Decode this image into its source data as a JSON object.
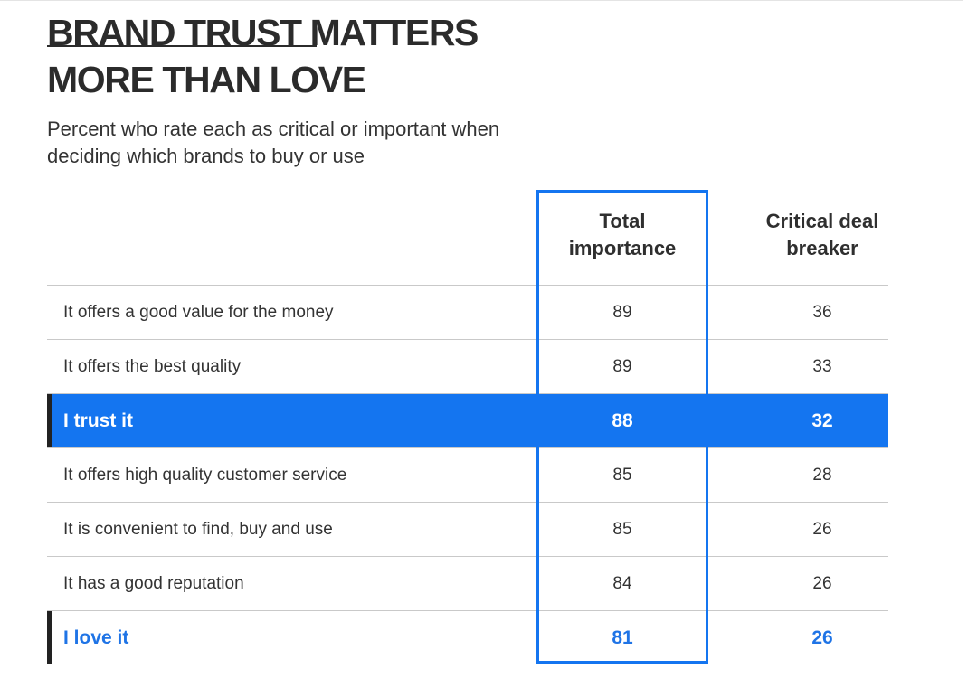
{
  "title_line1": "BRAND TRUST MATTERS",
  "title_line2": "MORE THAN LOVE",
  "subtitle": "Percent who rate each as critical or important when deciding which brands to buy or use",
  "columns": {
    "total_line1": "Total",
    "total_line2": "importance",
    "critical_line1": "Critical deal",
    "critical_line2": "breaker"
  },
  "colors": {
    "accent": "#1475f0",
    "love_text": "#1f74e6",
    "marker": "#222222"
  },
  "chart_data": {
    "type": "table",
    "title": "BRAND TRUST MATTERS MORE THAN LOVE",
    "subtitle": "Percent who rate each as critical or important when deciding which brands to buy or use",
    "columns": [
      "Total importance",
      "Critical deal breaker"
    ],
    "rows": [
      {
        "label": "It offers a good value for the money",
        "total": "89",
        "critical": "36",
        "style": "normal"
      },
      {
        "label": "It offers the best quality",
        "total": "89",
        "critical": "33",
        "style": "normal"
      },
      {
        "label": "I trust it",
        "total": "88",
        "critical": "32",
        "style": "highlight"
      },
      {
        "label": "It offers high quality customer service",
        "total": "85",
        "critical": "28",
        "style": "normal"
      },
      {
        "label": "It is convenient to find, buy and use",
        "total": "85",
        "critical": "26",
        "style": "normal"
      },
      {
        "label": "It has a good reputation",
        "total": "84",
        "critical": "26",
        "style": "normal"
      },
      {
        "label": "I love it",
        "total": "81",
        "critical": "26",
        "style": "accent"
      }
    ]
  }
}
